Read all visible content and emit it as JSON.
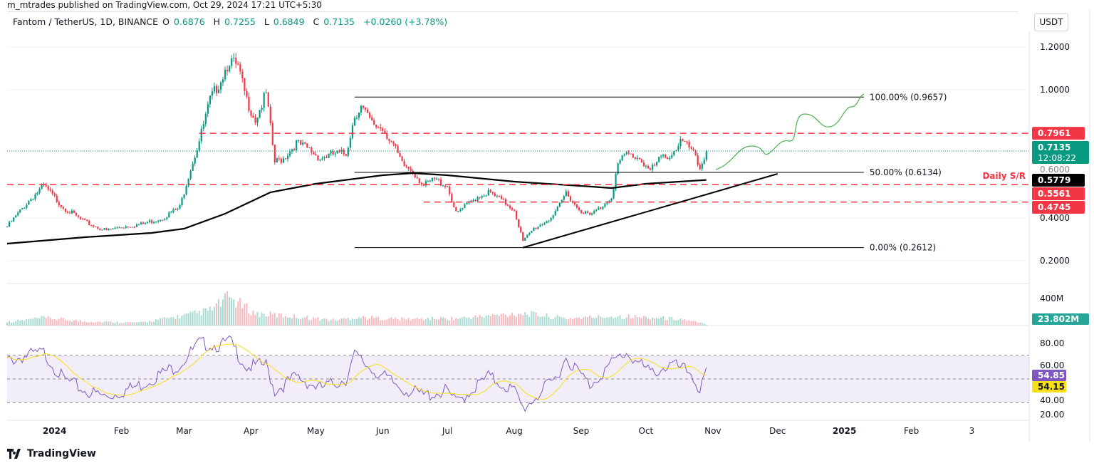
{
  "header": {
    "published": "m_mtrades published on TradingView.com, Oct 29, 2024 17:21 UTC+5:30",
    "symbol": "Fantom / TetherUS, 1D, BINANCE",
    "o_label": "O",
    "o": "0.6876",
    "h_label": "H",
    "h": "0.7255",
    "l_label": "L",
    "l": "0.6849",
    "c_label": "C",
    "c": "0.7135",
    "change": "+0.0260 (+3.78%)",
    "currency": "USDT"
  },
  "branding": "TradingView",
  "colors": {
    "up": "#089981",
    "down": "#f23645",
    "ma": "#000000",
    "rsi": "#7e57c2",
    "rsi_ma": "#f7e017",
    "forecast": "#4caf50"
  },
  "chart_data": {
    "type": "candlestick",
    "price_axis": {
      "ticks": [
        "1.2000",
        "1.0000",
        "0.4000",
        "0.2000"
      ],
      "range": [
        0.06,
        1.27
      ]
    },
    "time_axis": {
      "ticks": [
        {
          "label": "2024",
          "date": "2024-01-01",
          "bold": true
        },
        {
          "label": "Feb",
          "date": "2024-02-01"
        },
        {
          "label": "Mar",
          "date": "2024-03-01"
        },
        {
          "label": "Apr",
          "date": "2024-04-01"
        },
        {
          "label": "May",
          "date": "2024-05-01"
        },
        {
          "label": "Jun",
          "date": "2024-06-01"
        },
        {
          "label": "Jul",
          "date": "2024-07-01"
        },
        {
          "label": "Aug",
          "date": "2024-08-01"
        },
        {
          "label": "Sep",
          "date": "2024-09-01"
        },
        {
          "label": "Oct",
          "date": "2024-10-01"
        },
        {
          "label": "Nov",
          "date": "2024-11-01"
        },
        {
          "label": "Dec",
          "date": "2024-12-01"
        },
        {
          "label": "2025",
          "date": "2025-01-01",
          "bold": true
        },
        {
          "label": "Feb",
          "date": "2025-02-01"
        },
        {
          "label": "3",
          "date": "2025-03-01"
        }
      ]
    },
    "close": [
      [
        "2023-12-10",
        0.36
      ],
      [
        "2023-12-20",
        0.48
      ],
      [
        "2023-12-27",
        0.55
      ],
      [
        "2024-01-05",
        0.45
      ],
      [
        "2024-01-15",
        0.38
      ],
      [
        "2024-01-25",
        0.34
      ],
      [
        "2024-02-01",
        0.36
      ],
      [
        "2024-02-10",
        0.37
      ],
      [
        "2024-02-20",
        0.4
      ],
      [
        "2024-02-28",
        0.45
      ],
      [
        "2024-03-03",
        0.6
      ],
      [
        "2024-03-08",
        0.76
      ],
      [
        "2024-03-13",
        0.95
      ],
      [
        "2024-03-18",
        1.05
      ],
      [
        "2024-03-22",
        1.14
      ],
      [
        "2024-03-26",
        1.1
      ],
      [
        "2024-03-30",
        0.95
      ],
      [
        "2024-04-03",
        0.86
      ],
      [
        "2024-04-08",
        0.98
      ],
      [
        "2024-04-12",
        0.66
      ],
      [
        "2024-04-16",
        0.68
      ],
      [
        "2024-04-22",
        0.75
      ],
      [
        "2024-04-28",
        0.72
      ],
      [
        "2024-05-03",
        0.68
      ],
      [
        "2024-05-10",
        0.7
      ],
      [
        "2024-05-15",
        0.7
      ],
      [
        "2024-05-19",
        0.88
      ],
      [
        "2024-05-22",
        0.92
      ],
      [
        "2024-05-27",
        0.84
      ],
      [
        "2024-06-01",
        0.82
      ],
      [
        "2024-06-05",
        0.76
      ],
      [
        "2024-06-10",
        0.65
      ],
      [
        "2024-06-15",
        0.62
      ],
      [
        "2024-06-20",
        0.55
      ],
      [
        "2024-06-25",
        0.58
      ],
      [
        "2024-07-01",
        0.55
      ],
      [
        "2024-07-05",
        0.42
      ],
      [
        "2024-07-10",
        0.46
      ],
      [
        "2024-07-15",
        0.5
      ],
      [
        "2024-07-20",
        0.52
      ],
      [
        "2024-07-25",
        0.49
      ],
      [
        "2024-08-01",
        0.44
      ],
      [
        "2024-08-05",
        0.29
      ],
      [
        "2024-08-10",
        0.35
      ],
      [
        "2024-08-15",
        0.38
      ],
      [
        "2024-08-20",
        0.42
      ],
      [
        "2024-08-25",
        0.52
      ],
      [
        "2024-08-30",
        0.45
      ],
      [
        "2024-09-05",
        0.41
      ],
      [
        "2024-09-10",
        0.45
      ],
      [
        "2024-09-15",
        0.5
      ],
      [
        "2024-09-18",
        0.65
      ],
      [
        "2024-09-22",
        0.7
      ],
      [
        "2024-09-28",
        0.68
      ],
      [
        "2024-10-03",
        0.62
      ],
      [
        "2024-10-08",
        0.68
      ],
      [
        "2024-10-13",
        0.7
      ],
      [
        "2024-10-17",
        0.76
      ],
      [
        "2024-10-22",
        0.72
      ],
      [
        "2024-10-26",
        0.63
      ],
      [
        "2024-10-29",
        0.7135
      ]
    ],
    "ma200": [
      [
        "2023-12-10",
        0.28
      ],
      [
        "2024-01-15",
        0.31
      ],
      [
        "2024-02-15",
        0.33
      ],
      [
        "2024-03-01",
        0.35
      ],
      [
        "2024-03-20",
        0.42
      ],
      [
        "2024-04-10",
        0.52
      ],
      [
        "2024-05-01",
        0.56
      ],
      [
        "2024-06-01",
        0.6
      ],
      [
        "2024-06-15",
        0.61
      ],
      [
        "2024-07-01",
        0.6
      ],
      [
        "2024-08-01",
        0.57
      ],
      [
        "2024-09-01",
        0.55
      ],
      [
        "2024-09-15",
        0.54
      ],
      [
        "2024-10-01",
        0.56
      ],
      [
        "2024-10-29",
        0.578
      ]
    ],
    "volume_m": [
      [
        "2023-12-10",
        60
      ],
      [
        "2023-12-27",
        130
      ],
      [
        "2024-01-15",
        70
      ],
      [
        "2024-02-10",
        50
      ],
      [
        "2024-03-03",
        180
      ],
      [
        "2024-03-13",
        260
      ],
      [
        "2024-03-22",
        480
      ],
      [
        "2024-04-03",
        200
      ],
      [
        "2024-04-12",
        180
      ],
      [
        "2024-05-10",
        90
      ],
      [
        "2024-05-19",
        140
      ],
      [
        "2024-06-10",
        110
      ],
      [
        "2024-07-05",
        120
      ],
      [
        "2024-08-05",
        210
      ],
      [
        "2024-08-25",
        120
      ],
      [
        "2024-09-18",
        160
      ],
      [
        "2024-10-17",
        110
      ],
      [
        "2024-10-29",
        23.802
      ]
    ],
    "rsi": [
      [
        "2023-12-10",
        65
      ],
      [
        "2023-12-20",
        70
      ],
      [
        "2023-12-27",
        72
      ],
      [
        "2024-01-05",
        50
      ],
      [
        "2024-01-15",
        40
      ],
      [
        "2024-01-25",
        35
      ],
      [
        "2024-02-10",
        45
      ],
      [
        "2024-02-20",
        55
      ],
      [
        "2024-02-28",
        62
      ],
      [
        "2024-03-08",
        80
      ],
      [
        "2024-03-18",
        78
      ],
      [
        "2024-03-22",
        82
      ],
      [
        "2024-03-30",
        60
      ],
      [
        "2024-04-08",
        62
      ],
      [
        "2024-04-12",
        40
      ],
      [
        "2024-04-22",
        52
      ],
      [
        "2024-05-03",
        42
      ],
      [
        "2024-05-15",
        50
      ],
      [
        "2024-05-19",
        70
      ],
      [
        "2024-05-27",
        58
      ],
      [
        "2024-06-10",
        42
      ],
      [
        "2024-06-20",
        36
      ],
      [
        "2024-07-01",
        40
      ],
      [
        "2024-07-05",
        30
      ],
      [
        "2024-07-20",
        52
      ],
      [
        "2024-08-01",
        40
      ],
      [
        "2024-08-05",
        25
      ],
      [
        "2024-08-20",
        50
      ],
      [
        "2024-08-25",
        68
      ],
      [
        "2024-09-05",
        45
      ],
      [
        "2024-09-18",
        68
      ],
      [
        "2024-09-22",
        72
      ],
      [
        "2024-10-03",
        55
      ],
      [
        "2024-10-13",
        62
      ],
      [
        "2024-10-22",
        55
      ],
      [
        "2024-10-26",
        40
      ],
      [
        "2024-10-29",
        54.85
      ]
    ],
    "rsi_axis": {
      "ticks": [
        "80.00",
        "60.00",
        "40.00",
        "20.00"
      ],
      "bands": [
        70,
        50,
        30
      ]
    },
    "volume_axis": {
      "ticks": [
        "400M"
      ]
    },
    "labels": {
      "resistance": "0.7961",
      "last_price": "0.7135",
      "countdown": "12:08:22",
      "partial_tick": "0.6000",
      "ma_value": "0.5779",
      "support_1": "0.5561",
      "support_2": "0.4745",
      "daily_sr": "Daily S/R",
      "volume": "23.802M",
      "rsi": "54.85",
      "rsi_ma": "54.15"
    },
    "fib": {
      "start": "2024-05-19",
      "end": "2025-01-10",
      "levels": [
        {
          "label": "100.00% (0.9657)",
          "value": 0.9657
        },
        {
          "label": "50.00% (0.6134)",
          "value": 0.6134
        },
        {
          "label": "0.00% (0.2612)",
          "value": 0.2612
        }
      ]
    },
    "horizontal_levels": [
      {
        "value": 0.7961,
        "from": "2024-03-08"
      },
      {
        "value": 0.5561,
        "from": "2023-12-10"
      },
      {
        "value": 0.4745,
        "from": "2024-06-20"
      }
    ],
    "trendline": [
      [
        "2024-08-05",
        0.2612
      ],
      [
        "2024-12-01",
        0.6067
      ]
    ]
  }
}
